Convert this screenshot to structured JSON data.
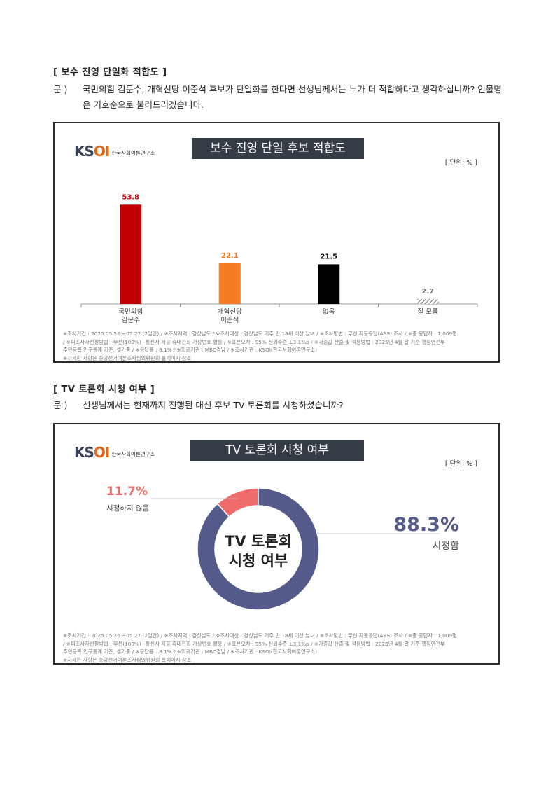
{
  "section1": {
    "heading": "[ 보수 진영 단일화 적합도 ]",
    "question_label": "문 )",
    "question_text": "국민의힘 김문수, 개혁신당 이준석 후보가 단일화를 한다면 선생님께서는 누가 더 적합하다고 생각하십니까? 인물명은 기호순으로 불러드리겠습니다."
  },
  "section2": {
    "heading": "[ TV 토론회 시청 여부 ]",
    "question_label": "문 )",
    "question_text": "선생님께서는 현재까지 진행된 대선 후보 TV 토론회를 시청하셨습니까?"
  },
  "logo": {
    "mark": "KSOI",
    "org_name": "한국사회여론연구소"
  },
  "unit_label": "[ 단위: % ]",
  "footer_lines": [
    "※조사기간 : 2025.05.26.~05.27.(2일간) / ※조사지역 : 경상남도 / ※조사대상 : 경상남도 거주 만 18세 이상 남녀 / ※조사방법 : 무선 자동응답(ARS) 조사 / ※총 응답자 : 1,009명",
    "/ ※피조사자선정방법 : 무선(100%) –통신사 제공 휴대전화 가상번호 활용 / ※표본오차 : 95% 신뢰수준 ±3.1%p / ※가중값 산출 및 적용방법 : 2025년 4월 말 기준 행정안전부",
    "주민등록 인구통계 기준, 셀가중 / ※응답률 : 8.1% / ※의뢰기관 : MBC경남 / ※조사기관 : KSOI(한국사회여론연구소)",
    "※자세한 사항은 중앙선거여론조사심의위원회 홈페이지 참조"
  ],
  "chart_data": [
    {
      "type": "bar",
      "title": "보수 진영 단일 후보 적합도",
      "categories": [
        [
          "국민의힘",
          "김문수"
        ],
        [
          "개혁신당",
          "이준석"
        ],
        [
          "없음"
        ],
        [
          "잘 모름"
        ]
      ],
      "values": [
        53.8,
        22.1,
        21.5,
        2.7
      ],
      "value_labels": [
        "53.8",
        "22.1",
        "21.5",
        "2.7"
      ],
      "colors": [
        "#c00000",
        "#f57c22",
        "#000000",
        "hatch"
      ],
      "label_colors": [
        "#c00000",
        "#f57c22",
        "#000000",
        "#777777"
      ],
      "ylim": [
        0,
        60
      ],
      "xlabel": "",
      "ylabel": ""
    },
    {
      "type": "pie",
      "title": "TV 토론회 시청 여부",
      "center_text": [
        "TV 토론회",
        "시청 여부"
      ],
      "slices": [
        {
          "label": "시청함",
          "value": 88.3,
          "value_label": "88.3%",
          "color": "#545a8a"
        },
        {
          "label": "시청하지 않음",
          "value": 11.7,
          "value_label": "11.7%",
          "color": "#f06b6b"
        }
      ]
    }
  ]
}
